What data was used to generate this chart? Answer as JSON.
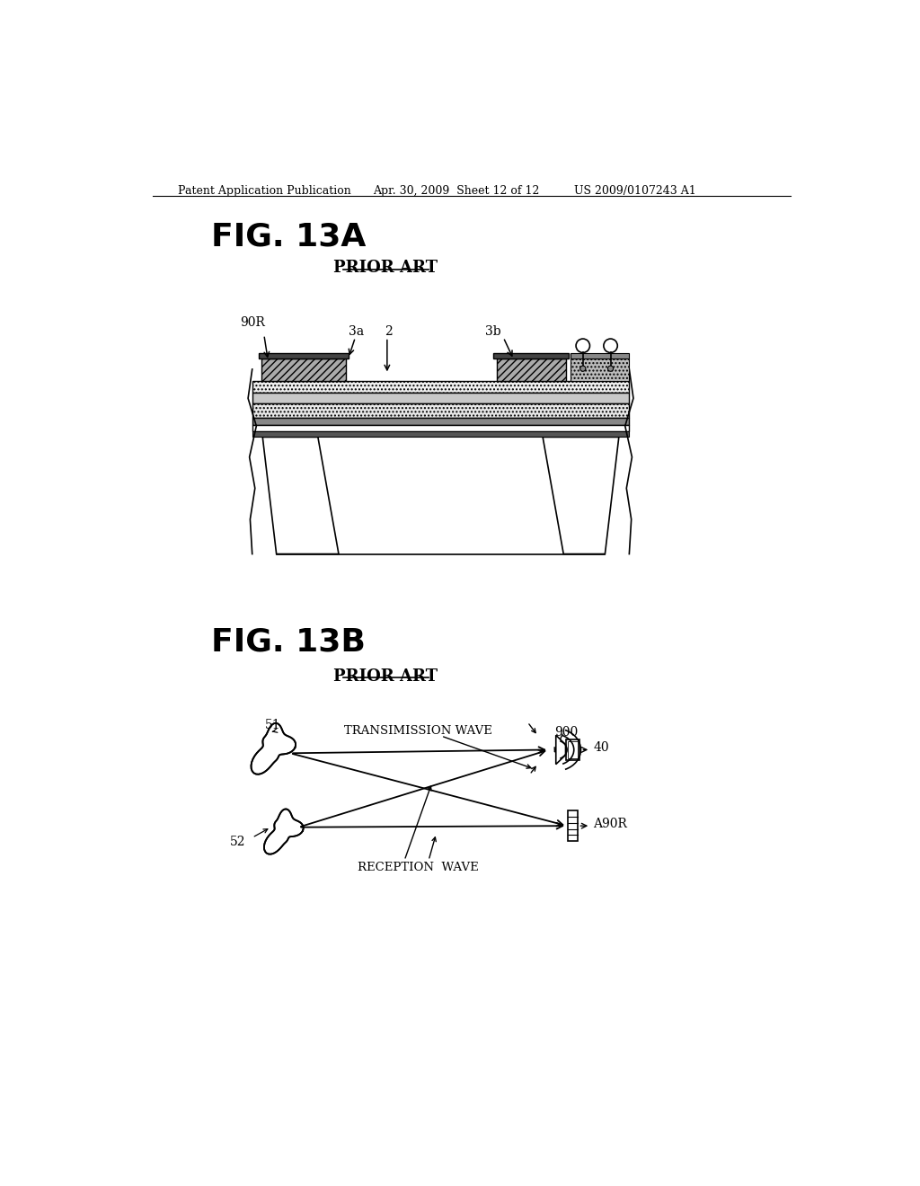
{
  "bg_color": "#ffffff",
  "text_color": "#000000",
  "header_left": "Patent Application Publication",
  "header_mid": "Apr. 30, 2009  Sheet 12 of 12",
  "header_right": "US 2009/0107243 A1",
  "fig13a_label": "FIG. 13A",
  "fig13b_label": "FIG. 13B",
  "prior_art_label": "PRIOR ART",
  "label_90R": "90R",
  "label_3a": "3a",
  "label_2": "2",
  "label_3b": "3b",
  "label_51": "51",
  "label_52": "52",
  "label_40": "40",
  "label_900": "900",
  "label_A90R": "A90R",
  "label_transmission": "TRANSIMISSION WAVE",
  "label_reception": "RECEPTION  WAVE"
}
